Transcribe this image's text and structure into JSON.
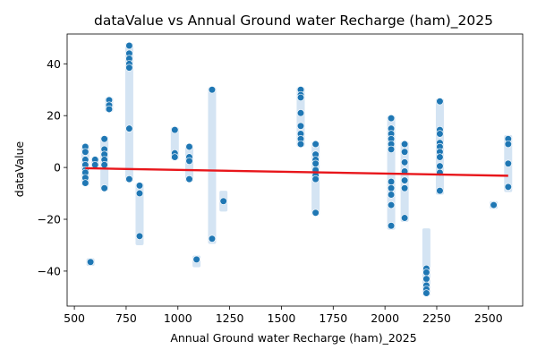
{
  "chart_data": {
    "type": "scatter",
    "title": "dataValue vs Annual Ground water Recharge (ham)_2025",
    "xlabel": "Annual Ground water Recharge (ham)_2025",
    "ylabel": "dataValue",
    "xlim": [
      465,
      2665
    ],
    "ylim": [
      -53.5,
      51.5
    ],
    "x_ticks": [
      500,
      750,
      1000,
      1250,
      1500,
      1750,
      2000,
      2250,
      2500
    ],
    "x_tick_labels": [
      "500",
      "750",
      "1000",
      "1250",
      "1500",
      "1750",
      "2000",
      "2250",
      "2500"
    ],
    "y_ticks": [
      -40,
      -20,
      0,
      20,
      40
    ],
    "y_tick_labels": [
      "−40",
      "−20",
      "0",
      "20",
      "40"
    ],
    "grid": false,
    "colors": {
      "points": "#1f77b4",
      "point_edge": "#ffffff",
      "trend": "#e8161b",
      "band": "#c6dbef"
    },
    "points": [
      [
        553,
        8
      ],
      [
        553,
        6
      ],
      [
        553,
        3
      ],
      [
        553,
        1
      ],
      [
        553,
        -1
      ],
      [
        553,
        -2
      ],
      [
        553,
        -4
      ],
      [
        553,
        -6
      ],
      [
        578,
        -36.5
      ],
      [
        600,
        3
      ],
      [
        600,
        1
      ],
      [
        645,
        11
      ],
      [
        645,
        7
      ],
      [
        645,
        5
      ],
      [
        645,
        3
      ],
      [
        645,
        1
      ],
      [
        645,
        -8
      ],
      [
        668,
        26
      ],
      [
        668,
        24
      ],
      [
        668,
        22.5
      ],
      [
        765,
        47
      ],
      [
        765,
        44
      ],
      [
        765,
        42
      ],
      [
        765,
        40
      ],
      [
        765,
        38.5
      ],
      [
        765,
        15
      ],
      [
        765,
        -4.5
      ],
      [
        815,
        -7
      ],
      [
        815,
        -10
      ],
      [
        815,
        -26.5
      ],
      [
        985,
        14.5
      ],
      [
        985,
        5.5
      ],
      [
        985,
        4
      ],
      [
        1055,
        8
      ],
      [
        1055,
        4
      ],
      [
        1055,
        2.5
      ],
      [
        1055,
        -4.5
      ],
      [
        1090,
        -35.5
      ],
      [
        1165,
        30
      ],
      [
        1165,
        -27.5
      ],
      [
        1220,
        -13
      ],
      [
        1593,
        30
      ],
      [
        1593,
        28
      ],
      [
        1593,
        27
      ],
      [
        1593,
        21
      ],
      [
        1593,
        16
      ],
      [
        1593,
        13
      ],
      [
        1593,
        11
      ],
      [
        1593,
        9
      ],
      [
        1665,
        9
      ],
      [
        1665,
        5
      ],
      [
        1665,
        3
      ],
      [
        1665,
        1.5
      ],
      [
        1665,
        -1
      ],
      [
        1665,
        -3
      ],
      [
        1665,
        -4.5
      ],
      [
        1665,
        -17.5
      ],
      [
        2030,
        19
      ],
      [
        2030,
        15
      ],
      [
        2030,
        13
      ],
      [
        2030,
        11
      ],
      [
        2030,
        9
      ],
      [
        2030,
        7
      ],
      [
        2030,
        -5.5
      ],
      [
        2030,
        -8
      ],
      [
        2030,
        -10.5
      ],
      [
        2030,
        -14.5
      ],
      [
        2030,
        -22.5
      ],
      [
        2095,
        9
      ],
      [
        2095,
        6
      ],
      [
        2095,
        2
      ],
      [
        2095,
        -1.5
      ],
      [
        2095,
        -5
      ],
      [
        2095,
        -8
      ],
      [
        2095,
        -19.5
      ],
      [
        2200,
        -39
      ],
      [
        2200,
        -40.5
      ],
      [
        2200,
        -43
      ],
      [
        2200,
        -45.5
      ],
      [
        2200,
        -47
      ],
      [
        2200,
        -48.5
      ],
      [
        2265,
        25.5
      ],
      [
        2265,
        14.5
      ],
      [
        2265,
        13
      ],
      [
        2265,
        9.5
      ],
      [
        2265,
        8
      ],
      [
        2265,
        6
      ],
      [
        2265,
        4
      ],
      [
        2265,
        0.5
      ],
      [
        2265,
        -2
      ],
      [
        2265,
        -9
      ],
      [
        2525,
        -14.5
      ],
      [
        2595,
        11
      ],
      [
        2595,
        9
      ],
      [
        2595,
        1.5
      ],
      [
        2595,
        -7.5
      ]
    ],
    "trend_line": {
      "x": [
        553,
        2595
      ],
      "y": [
        -0.3,
        -3.2
      ]
    },
    "bands": [
      [
        553,
        -7,
        9
      ],
      [
        578,
        -38,
        -35
      ],
      [
        600,
        0,
        4
      ],
      [
        645,
        -9,
        12
      ],
      [
        668,
        21.5,
        27
      ],
      [
        765,
        -5.5,
        48
      ],
      [
        815,
        -30,
        -6
      ],
      [
        985,
        3,
        15.5
      ],
      [
        1055,
        -5.5,
        9
      ],
      [
        1090,
        -38.5,
        -34
      ],
      [
        1165,
        -29.5,
        31
      ],
      [
        1220,
        -17,
        -9
      ],
      [
        1593,
        8,
        31
      ],
      [
        1665,
        -18.5,
        10
      ],
      [
        2030,
        -24,
        20
      ],
      [
        2095,
        -21,
        10
      ],
      [
        2200,
        -49.5,
        -23.5
      ],
      [
        2265,
        -10.5,
        26.5
      ],
      [
        2525,
        -16,
        -13
      ],
      [
        2595,
        -9.5,
        12.5
      ]
    ]
  }
}
